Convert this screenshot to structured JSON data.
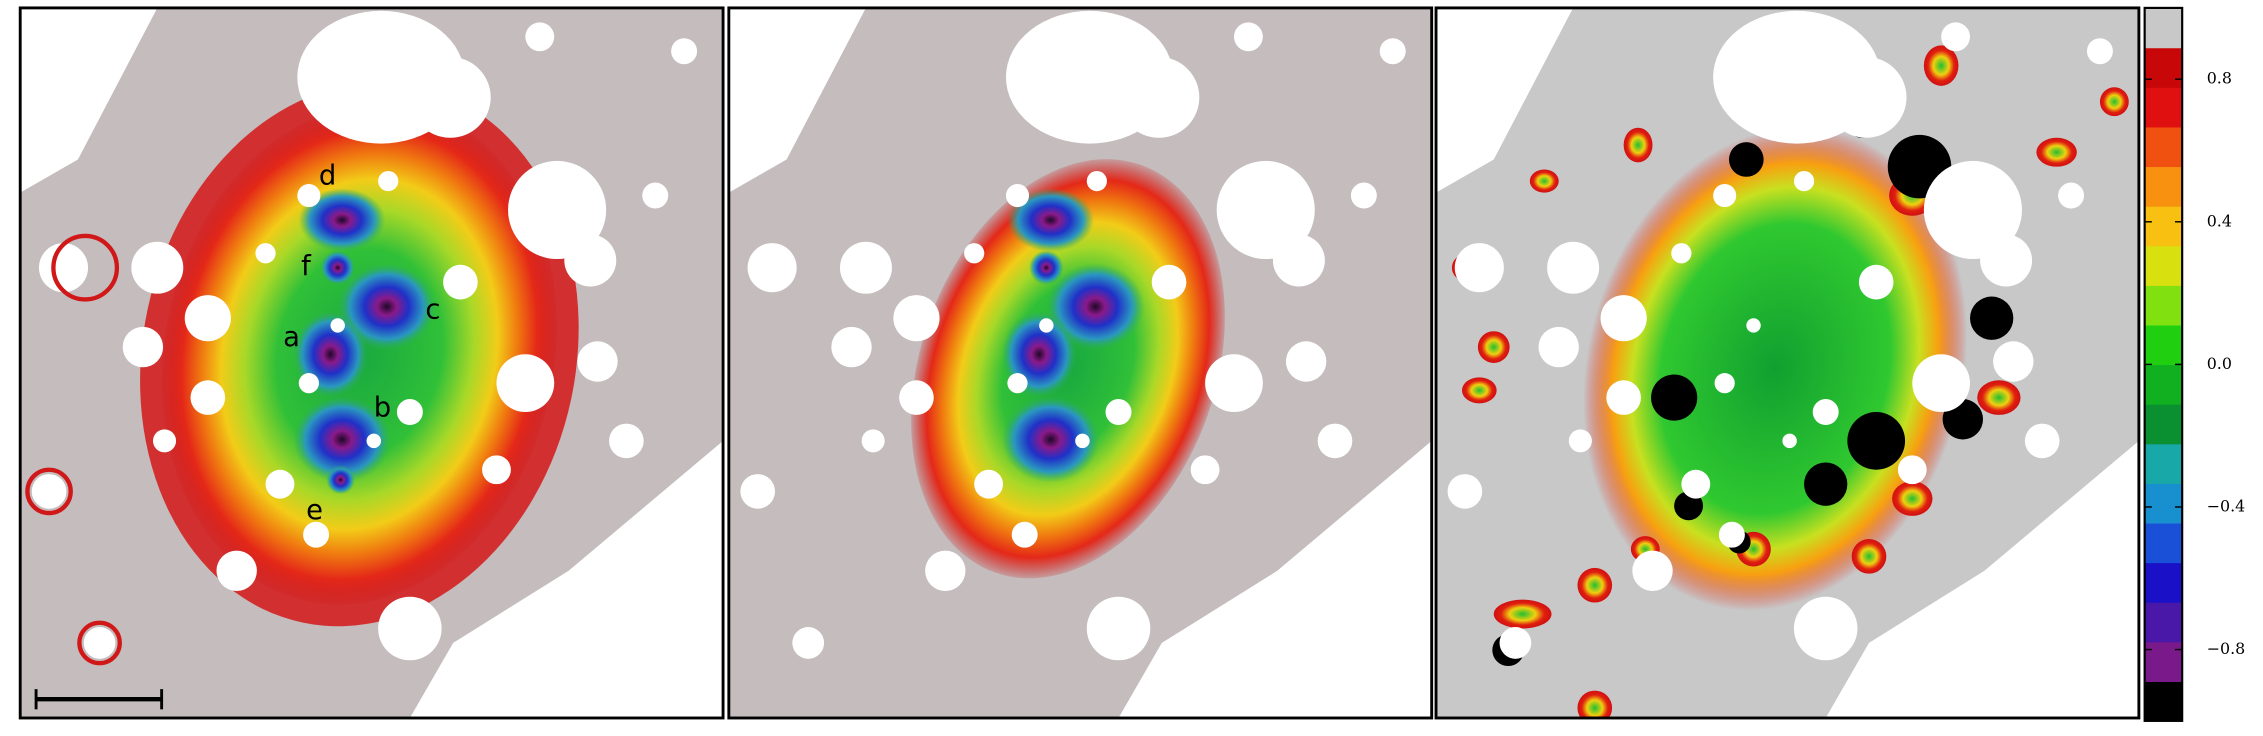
{
  "panels": {
    "labels": [
      "a",
      "b",
      "c",
      "d",
      "e",
      "f"
    ]
  },
  "colorbar": {
    "ylim": [
      -1,
      1
    ],
    "ticks": [
      0.8,
      0.4,
      {
        "value": 0,
        "label": "0.0"
      },
      {
        "value": -0.4,
        "label": "−0.4"
      },
      {
        "value": -0.8,
        "label": "−0.8"
      }
    ],
    "colors": [
      "#000000",
      "#7a1a8a",
      "#4a18a8",
      "#1a10c8",
      "#1a50d8",
      "#1890d0",
      "#18a8a8",
      "#0a9030",
      "#10b020",
      "#20d010",
      "#80e010",
      "#d8e010",
      "#f8c010",
      "#f89010",
      "#f05010",
      "#e01010",
      "#c80808",
      "#c8c8c8"
    ]
  }
}
